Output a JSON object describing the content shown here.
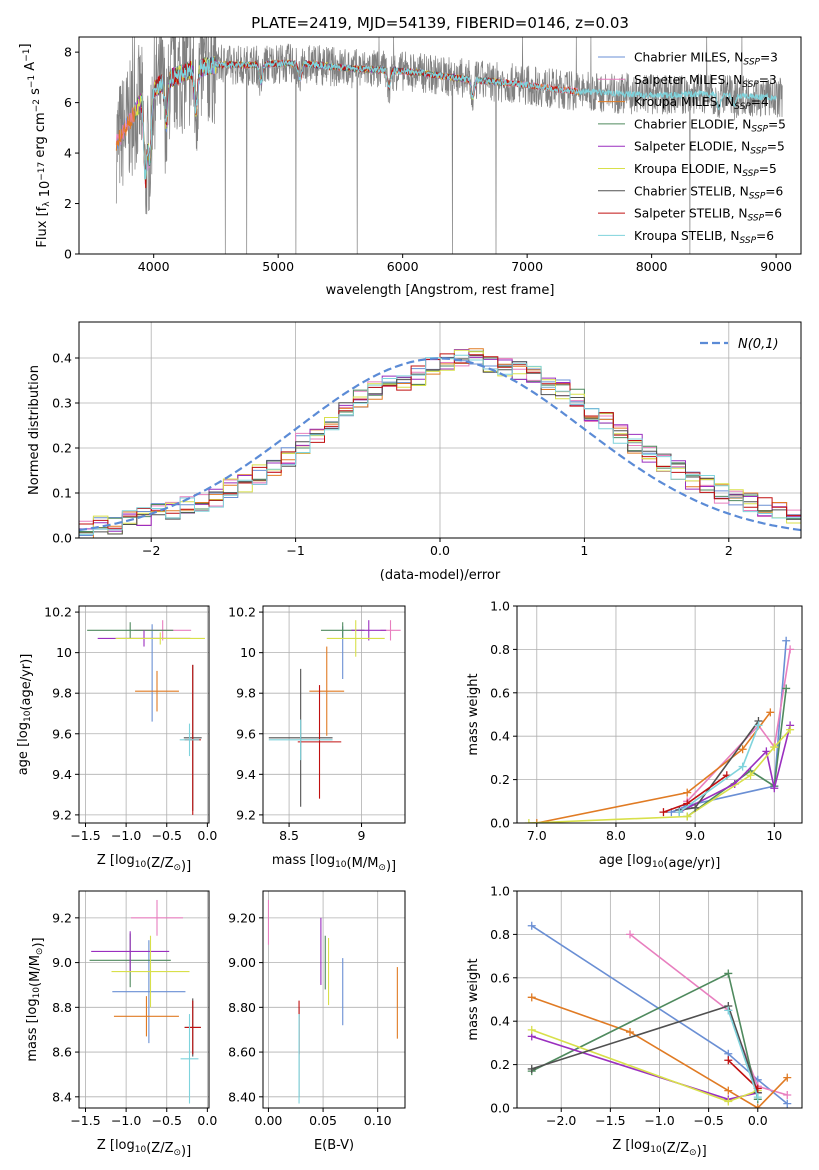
{
  "figure": {
    "title": "PLATE=2419, MJD=54139, FIBERID=0146, z=0.03"
  },
  "colors": {
    "grid": "#b0b0b0",
    "axis": "#000000",
    "normal_curve": "#5b8bd6",
    "observed_spectrum": "#808080"
  },
  "models": [
    {
      "name": "Chabrier MILES",
      "nssp": "3",
      "color": "#6a8fd4"
    },
    {
      "name": "Salpeter MILES",
      "nssp": "3",
      "color": "#e87fbf"
    },
    {
      "name": "Kroupa MILES",
      "nssp": "4",
      "color": "#e07b24"
    },
    {
      "name": "Chabrier ELODIE",
      "nssp": "5",
      "color": "#4f8a5e"
    },
    {
      "name": "Salpeter ELODIE",
      "nssp": "5",
      "color": "#9a2fbf"
    },
    {
      "name": "Kroupa ELODIE",
      "nssp": "5",
      "color": "#d8e04a"
    },
    {
      "name": "Chabrier STELIB",
      "nssp": "6",
      "color": "#505050"
    },
    {
      "name": "Salpeter STELIB",
      "nssp": "6",
      "color": "#c01010"
    },
    {
      "name": "Kroupa STELIB",
      "nssp": "6",
      "color": "#7fd3dc"
    }
  ],
  "chart_data": [
    {
      "id": "spectrum",
      "type": "line",
      "xlabel": "wavelength [Angstrom, rest frame]",
      "ylabel": "Flux [f_λ 10^-17 erg cm^-2 s^-1 A^-1]",
      "xlim": [
        3400,
        9200
      ],
      "ylim": [
        0,
        8.6
      ],
      "xticks": [
        4000,
        5000,
        6000,
        7000,
        8000,
        9000
      ],
      "yticks": [
        0,
        2,
        4,
        6,
        8
      ],
      "observed_range": [
        3700,
        9050
      ],
      "model_ranges": [
        [
          3700,
          6800
        ],
        [
          3700,
          7420
        ],
        [
          3700,
          7420
        ],
        [
          3850,
          6800
        ],
        [
          3850,
          6800
        ],
        [
          3850,
          6800
        ],
        [
          3900,
          6800
        ],
        [
          3900,
          7420
        ],
        [
          3900,
          9000
        ]
      ],
      "continuum": {
        "x": [
          3700,
          3800,
          3900,
          4000,
          4100,
          4200,
          4300,
          4400,
          4500,
          4600,
          4800,
          5000,
          5200,
          5400,
          5600,
          5800,
          6000,
          6200,
          6400,
          6600,
          6800,
          7000,
          7200,
          7400,
          7600,
          7800,
          8000,
          8200,
          8400,
          8600,
          8800,
          9000
        ],
        "y": [
          4.4,
          5.2,
          6.1,
          6.5,
          6.9,
          7.1,
          7.3,
          7.4,
          7.5,
          7.5,
          7.5,
          7.55,
          7.55,
          7.45,
          7.35,
          7.3,
          7.25,
          7.15,
          7.0,
          6.9,
          6.8,
          6.7,
          6.55,
          6.45,
          6.4,
          6.35,
          6.3,
          6.3,
          6.35,
          6.3,
          6.25,
          6.2
        ]
      },
      "drops": [
        {
          "x": 3934,
          "y": 3.0
        },
        {
          "x": 3969,
          "y": 3.8
        },
        {
          "x": 4102,
          "y": 5.2
        },
        {
          "x": 4340,
          "y": 5.8
        },
        {
          "x": 4861,
          "y": 6.8
        },
        {
          "x": 5175,
          "y": 6.9
        },
        {
          "x": 5890,
          "y": 6.6
        },
        {
          "x": 6563,
          "y": 6.2
        },
        {
          "x": 8542,
          "y": 5.8
        },
        {
          "x": 8662,
          "y": 5.9
        }
      ],
      "legend_location": "upper right"
    },
    {
      "id": "residuals",
      "type": "bar",
      "xlabel": "(data-model)/error",
      "ylabel": "Normed distribution",
      "xlim": [
        -2.5,
        2.5
      ],
      "ylim": [
        0,
        0.48
      ],
      "xticks": [
        -2,
        -1,
        0,
        1,
        2
      ],
      "yticks": [
        0.0,
        0.1,
        0.2,
        0.3,
        0.4
      ],
      "bin_width": 0.1,
      "legend": "N(0,1)",
      "base_hist": [
        0.02,
        0.03,
        0.03,
        0.04,
        0.05,
        0.06,
        0.06,
        0.07,
        0.08,
        0.09,
        0.11,
        0.12,
        0.14,
        0.16,
        0.18,
        0.21,
        0.23,
        0.26,
        0.29,
        0.31,
        0.33,
        0.34,
        0.35,
        0.36,
        0.38,
        0.39,
        0.4,
        0.4,
        0.39,
        0.38,
        0.37,
        0.36,
        0.34,
        0.33,
        0.31,
        0.28,
        0.26,
        0.23,
        0.21,
        0.19,
        0.17,
        0.15,
        0.13,
        0.12,
        0.1,
        0.09,
        0.08,
        0.07,
        0.06,
        0.05
      ]
    },
    {
      "id": "age_vs_Z",
      "type": "scatter",
      "xlabel": "Z [log10(Z/Z⊙)]",
      "ylabel": "age [log10(age/yr)]",
      "xlim": [
        -1.58,
        0.02
      ],
      "ylim": [
        9.16,
        10.23
      ],
      "xticks": [
        -1.5,
        -1.0,
        -0.5,
        0.0
      ],
      "yticks": [
        9.2,
        9.4,
        9.6,
        9.8,
        10.0,
        10.2
      ],
      "points": [
        {
          "m": 0,
          "x": -0.68,
          "y": 9.9,
          "xe": 0.0,
          "ye": 0.24
        },
        {
          "m": 1,
          "x": -0.55,
          "y": 10.11,
          "xe": 0.35,
          "ye": 0.05
        },
        {
          "m": 2,
          "x": -0.62,
          "y": 9.81,
          "xe": 0.27,
          "ye": 0.1
        },
        {
          "m": 3,
          "x": -0.95,
          "y": 10.11,
          "xe": 0.53,
          "ye": 0.04
        },
        {
          "m": 4,
          "x": -0.78,
          "y": 10.07,
          "xe": 0.57,
          "ye": 0.04
        },
        {
          "m": 5,
          "x": -0.58,
          "y": 10.07,
          "xe": 0.55,
          "ye": 0.03
        },
        {
          "m": 6,
          "x": -0.18,
          "y": 9.58,
          "xe": 0.11,
          "ye": 0.36
        },
        {
          "m": 7,
          "x": -0.18,
          "y": 9.57,
          "xe": 0.1,
          "ye": 0.37
        },
        {
          "m": 8,
          "x": -0.22,
          "y": 9.57,
          "xe": 0.12,
          "ye": 0.08
        }
      ]
    },
    {
      "id": "age_vs_mass",
      "type": "scatter",
      "xlabel": "mass [log10(M/M⊙)]",
      "ylabel": "",
      "xlim": [
        8.32,
        9.3
      ],
      "ylim": [
        9.16,
        10.23
      ],
      "xticks": [
        8.5,
        9.0
      ],
      "yticks": [
        9.2,
        9.4,
        9.6,
        9.8,
        10.0,
        10.2
      ],
      "points": [
        {
          "m": 0,
          "x": 8.87,
          "y": 10.0,
          "xe": 0.0,
          "ye": 0.13
        },
        {
          "m": 1,
          "x": 9.2,
          "y": 10.11,
          "xe": 0.07,
          "ye": 0.05
        },
        {
          "m": 2,
          "x": 8.76,
          "y": 9.81,
          "xe": 0.12,
          "ye": 0.22
        },
        {
          "m": 3,
          "x": 8.87,
          "y": 10.11,
          "xe": 0.15,
          "ye": 0.04
        },
        {
          "m": 4,
          "x": 9.05,
          "y": 10.11,
          "xe": 0.12,
          "ye": 0.05
        },
        {
          "m": 5,
          "x": 8.96,
          "y": 10.07,
          "xe": 0.2,
          "ye": 0.09
        },
        {
          "m": 6,
          "x": 8.58,
          "y": 9.58,
          "xe": 0.22,
          "ye": 0.34
        },
        {
          "m": 7,
          "x": 8.71,
          "y": 9.56,
          "xe": 0.15,
          "ye": 0.28
        },
        {
          "m": 8,
          "x": 8.58,
          "y": 9.57,
          "xe": 0.22,
          "ye": 0.1
        }
      ]
    },
    {
      "id": "mass_weight_vs_age",
      "type": "line",
      "xlabel": "age [log10(age/yr)]",
      "ylabel": "mass weight",
      "xlim": [
        6.75,
        10.35
      ],
      "ylim": [
        0,
        1.0
      ],
      "xticks": [
        7,
        8,
        9,
        10
      ],
      "yticks": [
        0.0,
        0.2,
        0.4,
        0.6,
        0.8,
        1.0
      ],
      "series": [
        {
          "m": 0,
          "x": [
            8.7,
            8.9,
            10.0,
            10.15
          ],
          "y": [
            0.05,
            0.08,
            0.17,
            0.84
          ]
        },
        {
          "m": 1,
          "x": [
            8.9,
            9.8,
            10.0,
            10.2
          ],
          "y": [
            0.1,
            0.45,
            0.35,
            0.8
          ]
        },
        {
          "m": 2,
          "x": [
            7.0,
            8.9,
            9.6,
            9.95
          ],
          "y": [
            0.0,
            0.14,
            0.34,
            0.51
          ]
        },
        {
          "m": 3,
          "x": [
            8.9,
            9.7,
            10.0,
            10.15
          ],
          "y": [
            0.03,
            0.24,
            0.17,
            0.62
          ]
        },
        {
          "m": 4,
          "x": [
            8.8,
            9.5,
            9.9,
            10.0,
            10.2
          ],
          "y": [
            0.05,
            0.18,
            0.33,
            0.16,
            0.45
          ]
        },
        {
          "m": 5,
          "x": [
            6.9,
            8.9,
            9.7,
            10.0,
            10.2
          ],
          "y": [
            0.0,
            0.03,
            0.22,
            0.35,
            0.43
          ]
        },
        {
          "m": 6,
          "x": [
            8.8,
            9.0,
            9.8
          ],
          "y": [
            0.06,
            0.07,
            0.47
          ]
        },
        {
          "m": 7,
          "x": [
            8.6,
            8.9,
            9.4
          ],
          "y": [
            0.05,
            0.09,
            0.22
          ]
        },
        {
          "m": 8,
          "x": [
            8.8,
            9.6,
            9.8
          ],
          "y": [
            0.05,
            0.26,
            0.45
          ]
        }
      ]
    },
    {
      "id": "mass_vs_Z",
      "type": "scatter",
      "xlabel": "Z [log10(Z/Z⊙)]",
      "ylabel": "mass [log10(M/M⊙)]",
      "xlim": [
        -1.58,
        0.02
      ],
      "ylim": [
        8.35,
        9.32
      ],
      "xticks": [
        -1.5,
        -1.0,
        -0.5,
        0.0
      ],
      "yticks": [
        8.4,
        8.6,
        8.8,
        9.0,
        9.2
      ],
      "points": [
        {
          "m": 0,
          "x": -0.72,
          "y": 8.87,
          "xe": 0.45,
          "ye": 0.23
        },
        {
          "m": 1,
          "x": -0.62,
          "y": 9.2,
          "xe": 0.32,
          "ye": 0.08
        },
        {
          "m": 2,
          "x": -0.75,
          "y": 8.76,
          "xe": 0.4,
          "ye": 0.09
        },
        {
          "m": 3,
          "x": -0.95,
          "y": 9.01,
          "xe": 0.5,
          "ye": 0.12
        },
        {
          "m": 4,
          "x": -0.95,
          "y": 9.05,
          "xe": 0.48,
          "ye": 0.09
        },
        {
          "m": 5,
          "x": -0.7,
          "y": 8.96,
          "xe": 0.48,
          "ye": 0.16
        },
        {
          "m": 6,
          "x": -0.18,
          "y": 8.71,
          "xe": 0.1,
          "ye": 0.13
        },
        {
          "m": 7,
          "x": -0.18,
          "y": 8.71,
          "xe": 0.1,
          "ye": 0.12
        },
        {
          "m": 8,
          "x": -0.22,
          "y": 8.57,
          "xe": 0.11,
          "ye": 0.2
        }
      ]
    },
    {
      "id": "mass_vs_ebv",
      "type": "scatter",
      "xlabel": "E(B-V)",
      "ylabel": "",
      "xlim": [
        -0.005,
        0.125
      ],
      "ylim": [
        8.35,
        9.32
      ],
      "xticks": [
        0.0,
        0.05,
        0.1
      ],
      "yticks": [
        8.4,
        8.6,
        8.8,
        9.0,
        9.2
      ],
      "points": [
        {
          "m": 0,
          "x": 0.068,
          "y": 8.87,
          "xe": 0.0,
          "ye": 0.15
        },
        {
          "m": 1,
          "x": 0.0,
          "y": 9.18,
          "xe": 0.0,
          "ye": 0.1
        },
        {
          "m": 2,
          "x": 0.118,
          "y": 8.82,
          "xe": 0.0,
          "ye": 0.16
        },
        {
          "m": 3,
          "x": 0.052,
          "y": 9.0,
          "xe": 0.0,
          "ye": 0.12
        },
        {
          "m": 4,
          "x": 0.048,
          "y": 9.05,
          "xe": 0.0,
          "ye": 0.15
        },
        {
          "m": 5,
          "x": 0.055,
          "y": 8.96,
          "xe": 0.0,
          "ye": 0.15
        },
        {
          "m": 6,
          "x": 0.028,
          "y": 8.6,
          "xe": 0.0,
          "ye": 0.2
        },
        {
          "m": 7,
          "x": 0.028,
          "y": 8.71,
          "xe": 0.0,
          "ye": 0.12
        },
        {
          "m": 8,
          "x": 0.028,
          "y": 8.57,
          "xe": 0.0,
          "ye": 0.2
        }
      ]
    },
    {
      "id": "mass_weight_vs_Z",
      "type": "line",
      "xlabel": "Z [log10(Z/Z⊙)]",
      "ylabel": "mass weight",
      "xlim": [
        -2.45,
        0.45
      ],
      "ylim": [
        0,
        1.0
      ],
      "xticks": [
        -2.0,
        -1.5,
        -1.0,
        -0.5,
        0.0
      ],
      "yticks": [
        0.0,
        0.2,
        0.4,
        0.6,
        0.8,
        1.0
      ],
      "series": [
        {
          "m": 0,
          "x": [
            -2.3,
            -0.3,
            0.0,
            0.3
          ],
          "y": [
            0.84,
            0.25,
            0.13,
            0.02
          ]
        },
        {
          "m": 1,
          "x": [
            -1.3,
            -0.3,
            0.0,
            0.3
          ],
          "y": [
            0.8,
            0.45,
            0.1,
            0.06
          ]
        },
        {
          "m": 2,
          "x": [
            -2.3,
            -1.3,
            -0.3,
            0.0,
            0.3
          ],
          "y": [
            0.51,
            0.35,
            0.08,
            0.0,
            0.14
          ]
        },
        {
          "m": 3,
          "x": [
            -2.3,
            -0.3,
            0.0
          ],
          "y": [
            0.17,
            0.62,
            0.04
          ]
        },
        {
          "m": 4,
          "x": [
            -2.3,
            -0.3,
            0.0
          ],
          "y": [
            0.33,
            0.04,
            0.07
          ]
        },
        {
          "m": 5,
          "x": [
            -2.3,
            -0.3,
            0.0
          ],
          "y": [
            0.36,
            0.03,
            0.08
          ]
        },
        {
          "m": 6,
          "x": [
            -2.3,
            -0.3,
            0.0
          ],
          "y": [
            0.18,
            0.47,
            0.07
          ]
        },
        {
          "m": 7,
          "x": [
            -0.3,
            0.0
          ],
          "y": [
            0.22,
            0.09
          ]
        },
        {
          "m": 8,
          "x": [
            -0.3,
            0.0
          ],
          "y": [
            0.45,
            0.05
          ]
        }
      ]
    }
  ]
}
